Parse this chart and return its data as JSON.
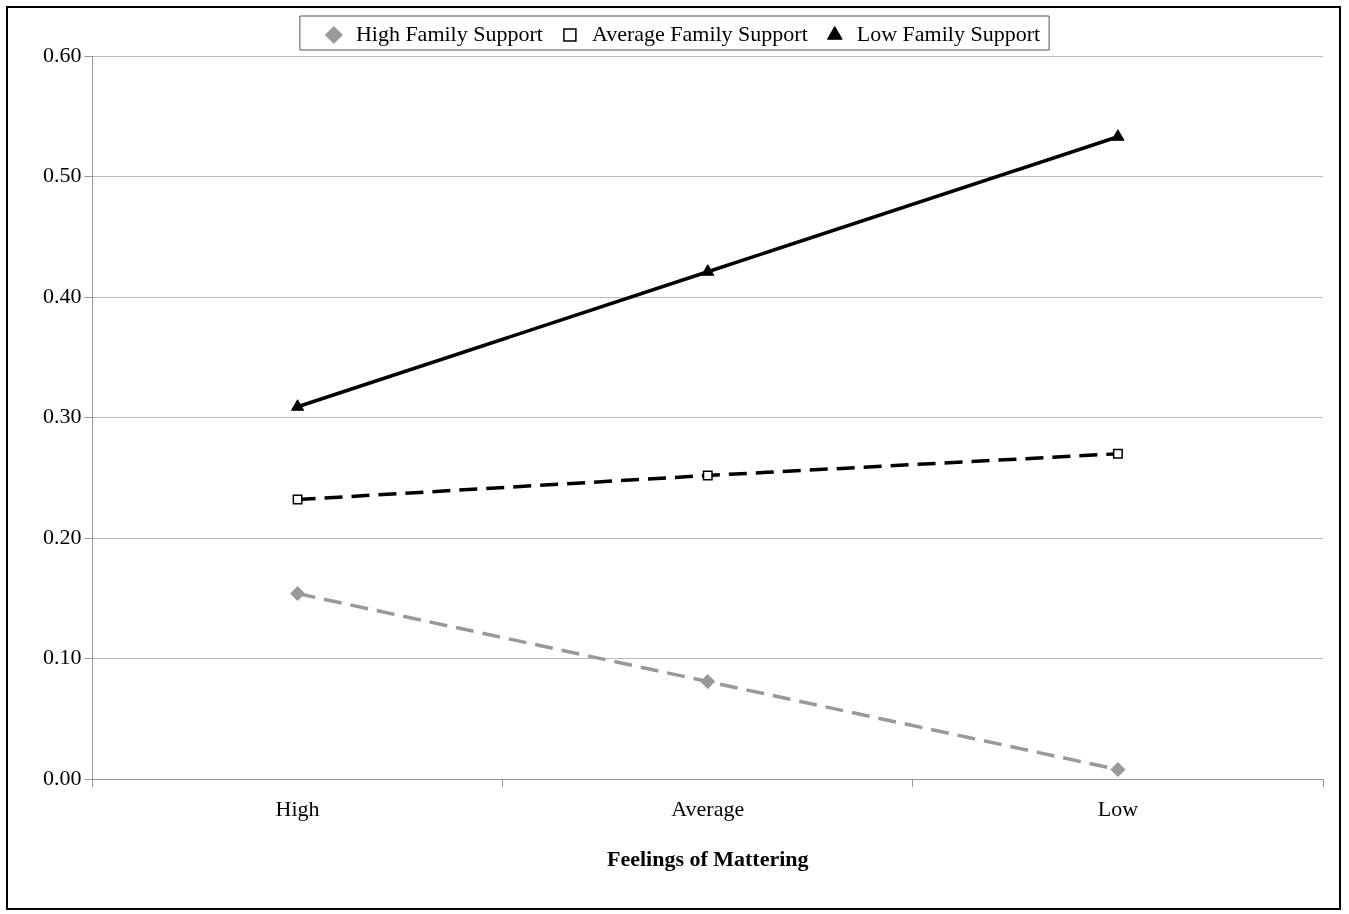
{
  "chart_data": {
    "type": "line",
    "xlabel": "Feelings of Mattering",
    "categories": [
      "High",
      "Average",
      "Low"
    ],
    "series": [
      {
        "name": "High Family Support",
        "color": "#999999",
        "marker": "diamond",
        "line_style": "dashed",
        "values": [
          0.154,
          0.081,
          0.008
        ]
      },
      {
        "name": "Average Family Support",
        "color": "#000000",
        "marker": "square",
        "line_style": "dashed",
        "values": [
          0.232,
          0.252,
          0.27
        ]
      },
      {
        "name": "Low Family Support",
        "color": "#000000",
        "marker": "triangle",
        "line_style": "solid",
        "values": [
          0.309,
          0.421,
          0.533
        ]
      }
    ],
    "ylim": [
      0,
      0.6
    ],
    "yticks": [
      {
        "value": 0,
        "label": "0.00"
      },
      {
        "value": 0.1,
        "label": "0.10"
      },
      {
        "value": 0.2,
        "label": "0.20"
      },
      {
        "value": 0.3,
        "label": "0.30"
      },
      {
        "value": 0.4,
        "label": "0.40"
      },
      {
        "value": 0.5,
        "label": "0.50"
      },
      {
        "value": 0.6,
        "label": "0.60"
      }
    ],
    "grid": "y",
    "legend": "top"
  }
}
